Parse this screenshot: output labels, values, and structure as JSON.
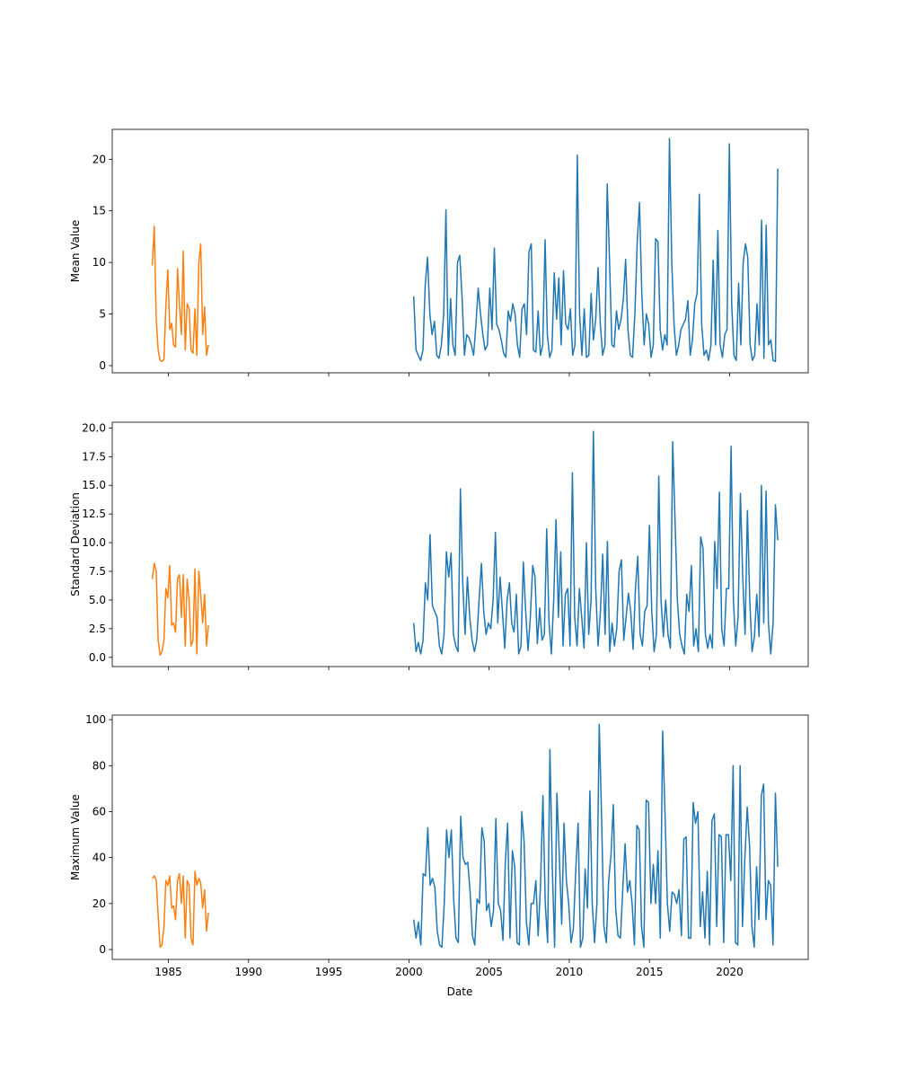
{
  "chart_data": {
    "type": "line",
    "xlabel": "Date",
    "x_axis": {
      "xlim": [
        1981.5,
        2024.9
      ],
      "ticks": [
        1985,
        1990,
        1995,
        2000,
        2005,
        2010,
        2015,
        2020
      ],
      "tick_labels": [
        "1985",
        "1990",
        "1995",
        "2000",
        "2005",
        "2010",
        "2015",
        "2020"
      ],
      "shared": true
    },
    "colors": {
      "early": "#ff7f0e",
      "recent": "#1f77b4"
    },
    "panels": [
      {
        "ylabel": "Mean Value",
        "ylim": [
          -0.7,
          22.9
        ],
        "yticks": [
          0,
          5,
          10,
          15,
          20
        ],
        "ytick_labels": [
          "0",
          "5",
          "10",
          "15",
          "20"
        ],
        "series": [
          {
            "color": "#ff7f0e",
            "x_start": 1984.0,
            "x_end": 1987.5,
            "values": [
              9.7,
              13.5,
              4.5,
              1.5,
              0.5,
              0.4,
              0.6,
              5.8,
              9.3,
              3.5,
              4.1,
              2.0,
              1.8,
              9.4,
              6.0,
              3.0,
              11.1,
              1.5,
              6.0,
              5.5,
              1.5,
              1.2,
              5.5,
              1.0,
              10.0,
              11.8,
              3.0,
              5.7,
              1.0,
              2.0
            ]
          },
          {
            "color": "#1f77b4",
            "x_start": 2000.3,
            "x_end": 2023.0,
            "values": [
              6.7,
              1.5,
              1.0,
              0.5,
              1.5,
              7.8,
              10.5,
              5.0,
              3.0,
              4.3,
              1.0,
              0.7,
              2.0,
              5.0,
              15.1,
              1.0,
              6.5,
              2.0,
              1.0,
              10.0,
              10.7,
              6.5,
              1.0,
              3.0,
              2.7,
              2.0,
              1.0,
              4.0,
              7.5,
              5.0,
              3.0,
              1.5,
              2.0,
              7.5,
              3.5,
              11.4,
              4.0,
              3.5,
              2.5,
              1.2,
              0.8,
              5.3,
              4.3,
              6.0,
              5.0,
              2.0,
              0.8,
              5.5,
              6.0,
              3.0,
              11.0,
              11.8,
              1.5,
              1.3,
              5.3,
              1.0,
              2.0,
              12.2,
              3.0,
              0.8,
              1.5,
              9.0,
              4.5,
              8.5,
              2.0,
              9.2,
              4.0,
              3.5,
              5.5,
              1.0,
              2.0,
              20.4,
              5.0,
              1.0,
              5.5,
              0.8,
              1.0,
              7.0,
              2.5,
              4.5,
              9.5,
              4.0,
              1.0,
              2.0,
              17.6,
              10.0,
              2.0,
              1.8,
              5.3,
              3.5,
              4.5,
              6.5,
              10.3,
              3.5,
              1.0,
              0.8,
              5.0,
              12.0,
              15.8,
              7.0,
              2.0,
              5.0,
              4.0,
              0.8,
              2.0,
              12.3,
              12.0,
              3.5,
              1.5,
              3.0,
              2.0,
              22.0,
              10.0,
              4.0,
              1.0,
              2.0,
              3.5,
              4.0,
              4.5,
              6.3,
              1.0,
              2.5,
              6.0,
              7.0,
              16.6,
              4.0,
              1.0,
              1.5,
              0.5,
              2.0,
              10.2,
              2.0,
              13.1,
              2.0,
              0.8,
              3.0,
              3.5,
              21.5,
              6.0,
              1.0,
              0.5,
              8.0,
              2.0,
              10.0,
              11.8,
              10.5,
              2.0,
              0.5,
              1.0,
              6.0,
              2.0,
              14.1,
              0.7,
              13.6,
              2.0,
              2.5,
              0.5,
              0.4,
              19.1
            ]
          }
        ]
      },
      {
        "ylabel": "Standard Deviation",
        "ylim": [
          -0.8,
          20.5
        ],
        "yticks": [
          0,
          2.5,
          5,
          7.5,
          10,
          12.5,
          15,
          17.5,
          20
        ],
        "ytick_labels": [
          "0.0",
          "2.5",
          "5.0",
          "7.5",
          "10.0",
          "12.5",
          "15.0",
          "17.5",
          "20.0"
        ],
        "series": [
          {
            "color": "#ff7f0e",
            "x_start": 1984.0,
            "x_end": 1987.5,
            "values": [
              6.8,
              8.2,
              7.5,
              1.5,
              0.2,
              0.5,
              1.5,
              6.0,
              5.2,
              8.0,
              2.8,
              3.0,
              2.2,
              6.9,
              7.2,
              3.5,
              7.2,
              1.0,
              6.8,
              5.0,
              1.0,
              1.5,
              7.7,
              0.3,
              7.5,
              5.5,
              3.0,
              5.5,
              1.0,
              2.8
            ]
          },
          {
            "color": "#1f77b4",
            "x_start": 2000.3,
            "x_end": 2023.0,
            "values": [
              3.0,
              0.5,
              1.3,
              0.3,
              1.5,
              6.5,
              5.0,
              10.7,
              4.5,
              4.0,
              3.5,
              1.0,
              0.3,
              2.0,
              9.2,
              7.0,
              9.1,
              2.0,
              1.0,
              0.5,
              14.7,
              6.5,
              2.0,
              7.0,
              3.5,
              1.5,
              0.5,
              1.5,
              5.0,
              8.2,
              4.0,
              2.0,
              3.0,
              2.5,
              5.0,
              10.9,
              3.0,
              7.0,
              4.0,
              0.8,
              5.0,
              6.5,
              3.0,
              2.2,
              5.5,
              0.3,
              1.0,
              8.3,
              4.0,
              0.6,
              3.5,
              8.0,
              7.0,
              1.2,
              4.3,
              1.5,
              2.0,
              11.2,
              3.0,
              0.3,
              5.0,
              12.0,
              3.5,
              9.2,
              1.0,
              5.5,
              6.0,
              1.0,
              16.1,
              3.5,
              1.0,
              6.0,
              3.5,
              0.8,
              10.0,
              2.0,
              5.0,
              19.7,
              6.0,
              1.0,
              4.0,
              9.0,
              2.0,
              10.1,
              0.5,
              3.0,
              1.0,
              2.5,
              7.5,
              8.5,
              1.5,
              3.5,
              5.6,
              4.0,
              0.7,
              6.0,
              8.8,
              2.0,
              1.0,
              4.0,
              4.5,
              11.5,
              4.0,
              0.5,
              2.0,
              15.8,
              5.0,
              1.8,
              5.0,
              2.0,
              0.8,
              18.8,
              12.0,
              5.0,
              2.0,
              1.0,
              0.3,
              5.5,
              4.0,
              8.0,
              1.0,
              2.5,
              0.5,
              10.5,
              9.5,
              2.0,
              0.8,
              2.0,
              0.8,
              10.1,
              6.0,
              14.4,
              2.5,
              1.0,
              6.0,
              6.0,
              18.4,
              5.0,
              1.0,
              3.5,
              14.3,
              7.0,
              2.0,
              12.8,
              5.0,
              0.5,
              1.8,
              5.5,
              1.8,
              15.0,
              3.0,
              14.5,
              3.0,
              0.3,
              3.0,
              13.3,
              10.2
            ]
          }
        ]
      },
      {
        "ylabel": "Maximum Value",
        "ylim": [
          -4.3,
          102
        ],
        "yticks": [
          0,
          20,
          40,
          60,
          80,
          100
        ],
        "ytick_labels": [
          "0",
          "20",
          "40",
          "60",
          "80",
          "100"
        ],
        "series": [
          {
            "color": "#ff7f0e",
            "x_start": 1984.0,
            "x_end": 1987.5,
            "values": [
              31,
              32,
              30,
              15,
              1,
              2,
              10,
              30,
              28,
              32,
              18,
              19,
              13,
              30,
              33,
              20,
              32,
              5,
              30,
              28,
              5,
              2,
              34,
              28,
              31,
              29,
              18,
              26,
              8,
              16
            ]
          },
          {
            "color": "#1f77b4",
            "x_start": 2000.3,
            "x_end": 2023.0,
            "values": [
              13,
              5,
              12,
              2,
              33,
              32,
              53,
              28,
              31,
              27,
              8,
              2,
              1,
              20,
              52,
              40,
              52,
              22,
              5,
              3,
              58,
              40,
              37,
              38,
              25,
              6,
              2,
              22,
              20,
              53,
              47,
              17,
              20,
              10,
              17,
              57,
              20,
              17,
              4,
              38,
              55,
              5,
              43,
              36,
              3,
              2,
              60,
              47,
              12,
              2,
              20,
              20,
              30,
              6,
              28,
              67,
              20,
              3,
              87,
              36,
              1,
              68,
              40,
              11,
              55,
              30,
              20,
              3,
              9,
              35,
              55,
              1,
              5,
              35,
              18,
              69,
              20,
              3,
              20,
              98,
              58,
              10,
              3,
              30,
              41,
              63,
              18,
              6,
              5,
              26,
              46,
              25,
              30,
              20,
              2,
              54,
              52,
              10,
              1,
              65,
              64,
              20,
              37,
              20,
              43,
              5,
              95,
              60,
              20,
              8,
              25,
              24,
              20,
              26,
              6,
              48,
              49,
              5,
              5,
              64,
              55,
              60,
              10,
              25,
              5,
              34,
              2,
              56,
              59,
              10,
              50,
              49,
              3,
              50,
              50,
              30,
              80,
              3,
              2,
              80,
              10,
              40,
              62,
              45,
              10,
              1,
              36,
              13,
              67,
              72,
              13,
              30,
              28,
              2,
              68,
              36
            ]
          }
        ]
      }
    ]
  }
}
